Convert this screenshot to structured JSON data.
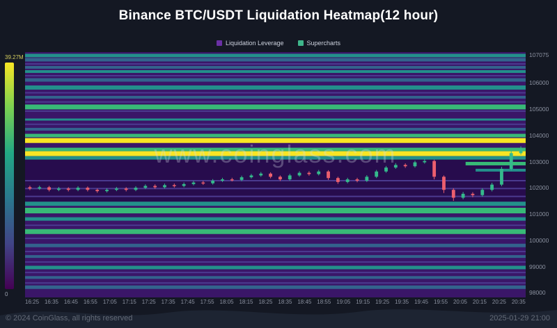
{
  "title": "Binance BTC/USDT Liquidation Heatmap(12 hour)",
  "watermark": "www.coinglass.com",
  "legend": {
    "items": [
      {
        "id": "liquidation-leverage",
        "label": "Liquidation Leverage",
        "color": "#6a30a5"
      },
      {
        "id": "supercharts",
        "label": "Supercharts",
        "color": "#3fb68b"
      }
    ]
  },
  "colorbar": {
    "max_label": "39.27M",
    "min_label": "0",
    "gradient": [
      "#f8e524",
      "#7ad151",
      "#22a884",
      "#2a788e",
      "#414487",
      "#440154"
    ]
  },
  "footer": {
    "copyright": "© 2024 CoinGlass, all rights reserved",
    "datetime": "2025-01-29 21:00"
  },
  "axes": {
    "price_labels": [
      "107075",
      "106000",
      "105000",
      "104000",
      "103000",
      "102000",
      "101000",
      "100000",
      "99000",
      "98000"
    ],
    "time_labels": [
      "16:25",
      "16:35",
      "16:45",
      "16:55",
      "17:05",
      "17:15",
      "17:25",
      "17:35",
      "17:45",
      "17:55",
      "18:05",
      "18:15",
      "18:25",
      "18:35",
      "18:45",
      "18:55",
      "19:05",
      "19:15",
      "19:25",
      "19:35",
      "19:45",
      "19:55",
      "20:05",
      "20:15",
      "20:25",
      "20:35"
    ]
  },
  "chart_data": {
    "type": "heatmap",
    "title": "Binance BTC/USDT Liquidation Heatmap(12 hour)",
    "price_max": 107150,
    "price_min": 97800,
    "colorbar_max": "39.27M",
    "colorbar_min": "0",
    "colors": {
      "plot_bg": "#3a1668",
      "dark_band": "#250a49",
      "up": "#35b98c",
      "down": "#ec5f6e"
    },
    "dark_band": [
      103060,
      101440
    ],
    "palette": {
      "b": "#33638d",
      "t": "#23908b",
      "g": "#38b977",
      "y": "#f8e524",
      "d": "#4b3a8f"
    },
    "stripes": [
      [
        107020,
        5,
        "t",
        0
      ],
      [
        106860,
        5,
        "b",
        0
      ],
      [
        106700,
        2,
        "d",
        0
      ],
      [
        106570,
        4,
        "b",
        0
      ],
      [
        106410,
        4,
        "t",
        0
      ],
      [
        106250,
        2,
        "d",
        0
      ],
      [
        106090,
        5,
        "b",
        0
      ],
      [
        105800,
        6,
        "t",
        0
      ],
      [
        105600,
        2,
        "d",
        0
      ],
      [
        105430,
        4,
        "b",
        0
      ],
      [
        105250,
        2,
        "d",
        0
      ],
      [
        105060,
        7,
        "g",
        0
      ],
      [
        104900,
        2,
        "d",
        0
      ],
      [
        104580,
        3,
        "t",
        0
      ],
      [
        104400,
        2,
        "d",
        0
      ],
      [
        104210,
        4,
        "b",
        0
      ],
      [
        103970,
        5,
        "g",
        0
      ],
      [
        103780,
        7,
        "y",
        0
      ],
      [
        103440,
        5,
        "g",
        0
      ],
      [
        103280,
        7,
        "y",
        0
      ],
      [
        103120,
        5,
        "t",
        0
      ],
      [
        102900,
        5,
        "g",
        0.88
      ],
      [
        102650,
        4,
        "t",
        0.9
      ],
      [
        102250,
        2,
        "d",
        0
      ],
      [
        101950,
        2,
        "d",
        0
      ],
      [
        101650,
        2,
        "d",
        0
      ],
      [
        101370,
        6,
        "t",
        0
      ],
      [
        101110,
        8,
        "g",
        0
      ],
      [
        100790,
        5,
        "t",
        0
      ],
      [
        100550,
        2,
        "d",
        0
      ],
      [
        100310,
        7,
        "g",
        0
      ],
      [
        100050,
        2,
        "d",
        0
      ],
      [
        99780,
        5,
        "b",
        0
      ],
      [
        99550,
        2,
        "d",
        0
      ],
      [
        99360,
        4,
        "b",
        0
      ],
      [
        99150,
        2,
        "d",
        0
      ],
      [
        98940,
        5,
        "t",
        0
      ],
      [
        98750,
        2,
        "d",
        0
      ],
      [
        98560,
        4,
        "b",
        0
      ],
      [
        98350,
        2,
        "d",
        0
      ],
      [
        98190,
        5,
        "b",
        0
      ]
    ],
    "candles": [
      [
        "16:25",
        102000,
        102060,
        101890,
        101950
      ],
      [
        "16:30",
        101950,
        102060,
        101900,
        102000
      ],
      [
        "16:35",
        102000,
        102050,
        101840,
        101900
      ],
      [
        "16:40",
        101900,
        102010,
        101850,
        101950
      ],
      [
        "16:45",
        101950,
        102000,
        101840,
        101900
      ],
      [
        "16:50",
        101900,
        102040,
        101850,
        101980
      ],
      [
        "16:55",
        101980,
        102030,
        101840,
        101900
      ],
      [
        "17:00",
        101900,
        101950,
        101790,
        101850
      ],
      [
        "17:05",
        101850,
        101960,
        101800,
        101900
      ],
      [
        "17:10",
        101900,
        102010,
        101850,
        101950
      ],
      [
        "17:15",
        101950,
        102000,
        101840,
        101900
      ],
      [
        "17:20",
        101900,
        102040,
        101850,
        101980
      ],
      [
        "17:25",
        101980,
        102110,
        101930,
        102050
      ],
      [
        "17:30",
        102050,
        102110,
        101940,
        102000
      ],
      [
        "17:35",
        102000,
        102140,
        101950,
        102080
      ],
      [
        "17:40",
        102080,
        102140,
        101990,
        102050
      ],
      [
        "17:45",
        102050,
        102180,
        102000,
        102120
      ],
      [
        "17:50",
        102120,
        102240,
        102070,
        102180
      ],
      [
        "17:55",
        102180,
        102240,
        102090,
        102150
      ],
      [
        "18:00",
        102150,
        102310,
        102100,
        102250
      ],
      [
        "18:05",
        102250,
        102360,
        102200,
        102300
      ],
      [
        "18:10",
        102300,
        102360,
        102220,
        102280
      ],
      [
        "18:15",
        102280,
        102440,
        102230,
        102380
      ],
      [
        "18:20",
        102380,
        102510,
        102330,
        102450
      ],
      [
        "18:25",
        102450,
        102580,
        102400,
        102520
      ],
      [
        "18:30",
        102520,
        102570,
        102340,
        102400
      ],
      [
        "18:35",
        102400,
        102450,
        102240,
        102300
      ],
      [
        "18:40",
        102300,
        102510,
        102250,
        102450
      ],
      [
        "18:45",
        102450,
        102610,
        102400,
        102550
      ],
      [
        "18:50",
        102550,
        102610,
        102440,
        102500
      ],
      [
        "18:55",
        102500,
        102660,
        102450,
        102600
      ],
      [
        "19:00",
        102600,
        102650,
        102280,
        102350
      ],
      [
        "19:05",
        102350,
        102400,
        102130,
        102200
      ],
      [
        "19:10",
        102200,
        102360,
        102150,
        102300
      ],
      [
        "19:15",
        102300,
        102360,
        102190,
        102250
      ],
      [
        "19:20",
        102250,
        102460,
        102200,
        102400
      ],
      [
        "19:25",
        102400,
        102660,
        102350,
        102600
      ],
      [
        "19:30",
        102600,
        102810,
        102550,
        102750
      ],
      [
        "19:35",
        102750,
        102920,
        102700,
        102850
      ],
      [
        "19:40",
        102850,
        102910,
        102740,
        102800
      ],
      [
        "19:45",
        102800,
        103010,
        102750,
        102950
      ],
      [
        "19:50",
        102950,
        103080,
        102900,
        103000
      ],
      [
        "19:55",
        103000,
        103050,
        102300,
        102400
      ],
      [
        "20:00",
        102400,
        102450,
        101780,
        101900
      ],
      [
        "20:05",
        101900,
        101960,
        101480,
        101600
      ],
      [
        "20:10",
        101600,
        101820,
        101540,
        101750
      ],
      [
        "20:15",
        101750,
        101810,
        101620,
        101700
      ],
      [
        "20:20",
        101700,
        101960,
        101640,
        101900
      ],
      [
        "20:25",
        101900,
        102170,
        101840,
        102100
      ],
      [
        "20:30",
        102100,
        102780,
        102040,
        102700
      ],
      [
        "20:35",
        102700,
        103400,
        102640,
        103300
      ],
      [
        "20:40",
        103300,
        103560,
        103240,
        103450
      ]
    ]
  }
}
